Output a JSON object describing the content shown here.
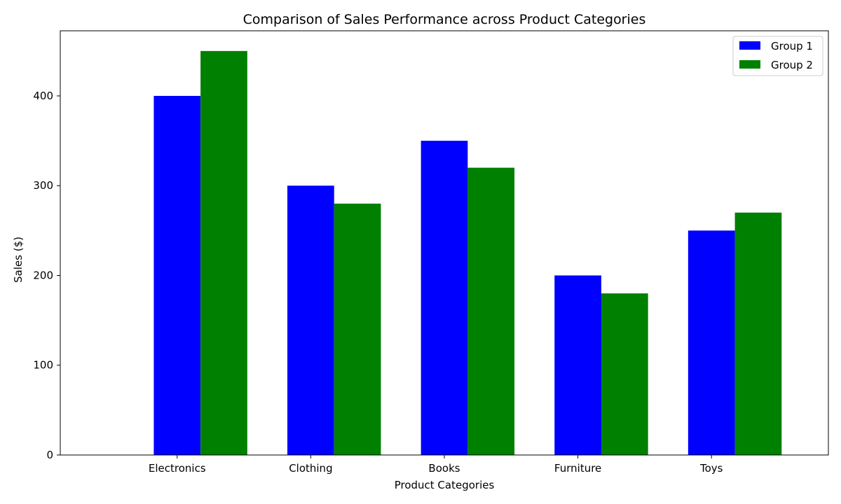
{
  "chart_data": {
    "type": "bar",
    "title": "Comparison of Sales Performance across Product Categories",
    "xlabel": "Product Categories",
    "ylabel": "Sales ($)",
    "categories": [
      "Electronics",
      "Clothing",
      "Books",
      "Furniture",
      "Toys"
    ],
    "series": [
      {
        "name": "Group 1",
        "values": [
          400,
          300,
          350,
          200,
          250
        ],
        "color": "#0000ff"
      },
      {
        "name": "Group 2",
        "values": [
          450,
          280,
          320,
          180,
          270
        ],
        "color": "#008000"
      }
    ],
    "ylim": [
      0,
      472.5
    ],
    "yticks": [
      0,
      100,
      200,
      300,
      400
    ],
    "grid": false,
    "legend_position": "top-right"
  }
}
